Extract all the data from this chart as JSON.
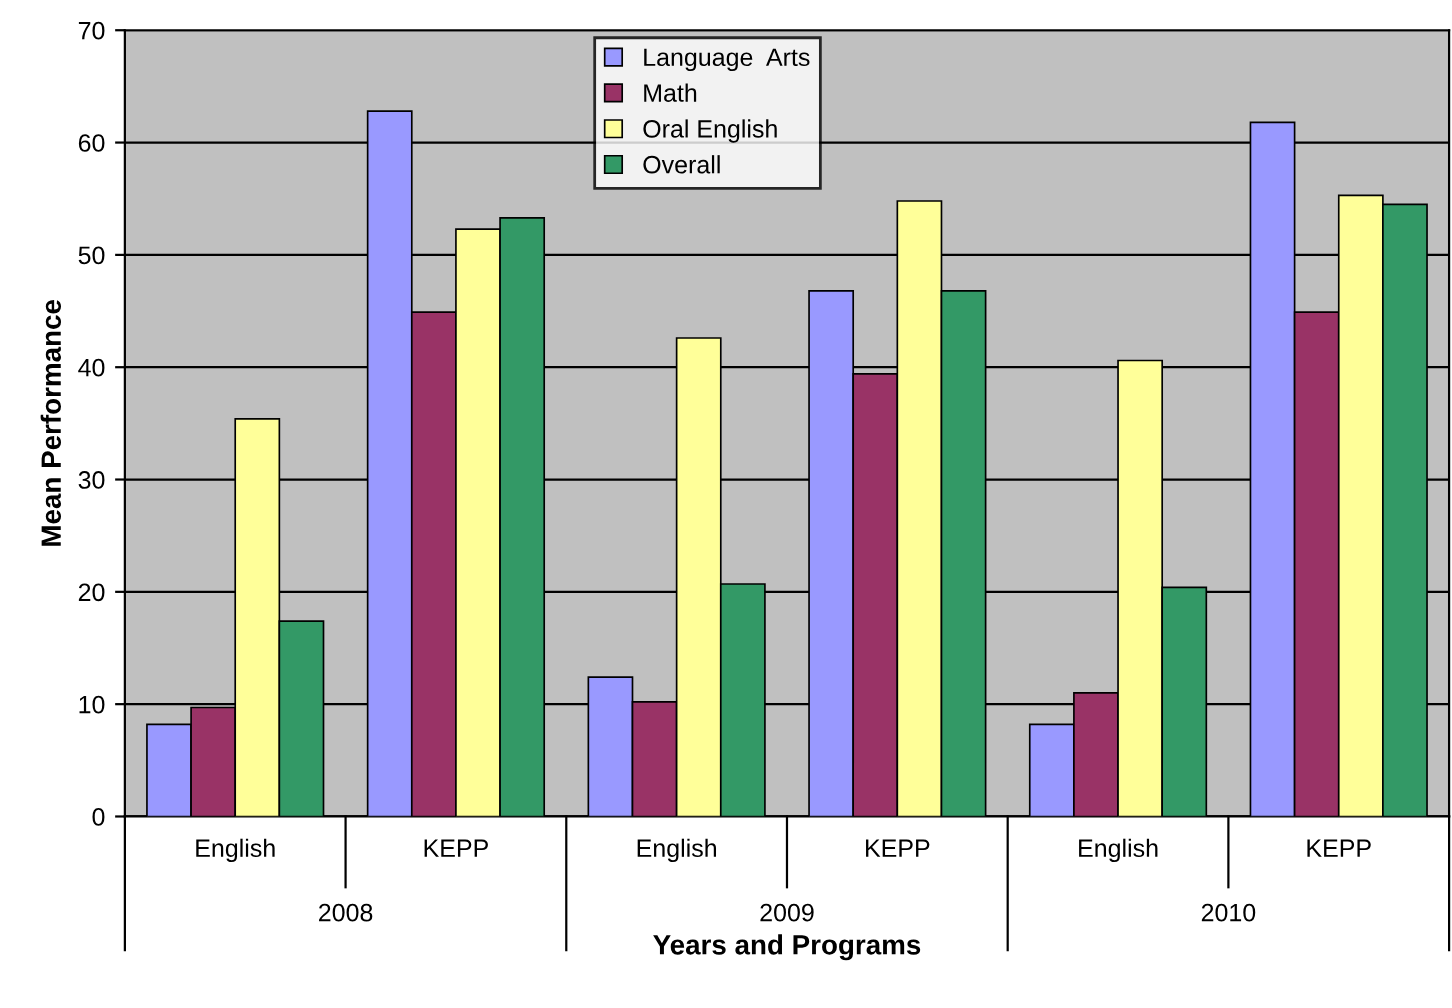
{
  "chart_data": {
    "type": "bar",
    "xlabel": "Years and Programs",
    "ylabel": "Mean Performance",
    "categories": [
      "English",
      "KEPP",
      "English",
      "KEPP",
      "English",
      "KEPP"
    ],
    "annotations": [
      "2008",
      "2009",
      "2010"
    ],
    "series": [
      {
        "name": "Language  Arts",
        "color": "#9999ff",
        "values": [
          8.2,
          62.8,
          12.4,
          46.8,
          8.2,
          61.8
        ]
      },
      {
        "name": "Math",
        "color": "#993366",
        "values": [
          9.7,
          44.9,
          10.2,
          39.4,
          11.0,
          44.9
        ]
      },
      {
        "name": "Oral English",
        "color": "#ffff99",
        "values": [
          35.4,
          52.3,
          42.6,
          54.8,
          40.6,
          55.3
        ]
      },
      {
        "name": "Overall",
        "color": "#339966",
        "values": [
          17.4,
          53.3,
          20.7,
          46.8,
          20.4,
          54.5
        ]
      }
    ],
    "ylim": [
      0,
      70
    ],
    "yticks": [
      0,
      10,
      20,
      30,
      40,
      50,
      60,
      70
    ],
    "grid": "y",
    "legend": "top"
  }
}
